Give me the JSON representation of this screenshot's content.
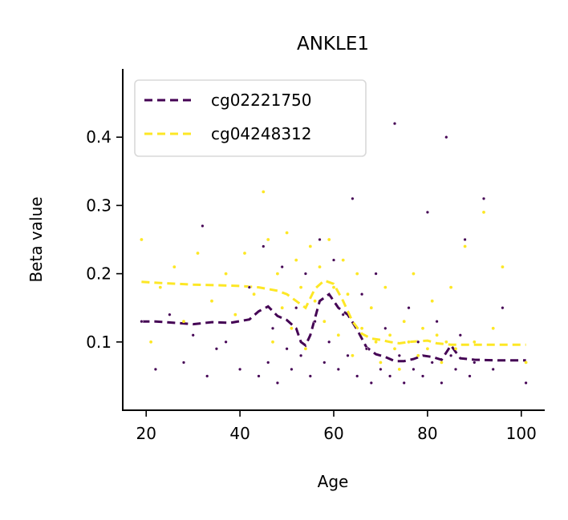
{
  "chart_data": {
    "type": "scatter",
    "title": "ANKLE1",
    "xlabel": "Age",
    "ylabel": "Beta value",
    "xlim": [
      15,
      105
    ],
    "ylim": [
      0.0,
      0.5
    ],
    "xticks": [
      20,
      40,
      60,
      80,
      100
    ],
    "yticks": [
      0.1,
      0.2,
      0.3,
      0.4
    ],
    "grid": false,
    "legend_position": "top-left",
    "series": [
      {
        "name": "cg02221750",
        "color": "#440154",
        "trend": [
          [
            19,
            0.13
          ],
          [
            22,
            0.13
          ],
          [
            26,
            0.128
          ],
          [
            30,
            0.126
          ],
          [
            34,
            0.129
          ],
          [
            38,
            0.128
          ],
          [
            42,
            0.133
          ],
          [
            44,
            0.145
          ],
          [
            46,
            0.152
          ],
          [
            48,
            0.138
          ],
          [
            50,
            0.132
          ],
          [
            52,
            0.12
          ],
          [
            53,
            0.1
          ],
          [
            54,
            0.095
          ],
          [
            55,
            0.11
          ],
          [
            57,
            0.16
          ],
          [
            59,
            0.17
          ],
          [
            61,
            0.15
          ],
          [
            63,
            0.14
          ],
          [
            65,
            0.118
          ],
          [
            67,
            0.092
          ],
          [
            69,
            0.082
          ],
          [
            71,
            0.078
          ],
          [
            73,
            0.072
          ],
          [
            75,
            0.072
          ],
          [
            77,
            0.075
          ],
          [
            79,
            0.08
          ],
          [
            81,
            0.078
          ],
          [
            83,
            0.074
          ],
          [
            85,
            0.095
          ],
          [
            87,
            0.076
          ],
          [
            90,
            0.074
          ],
          [
            95,
            0.073
          ],
          [
            101,
            0.073
          ]
        ],
        "points": [
          [
            19,
            0.13
          ],
          [
            22,
            0.06
          ],
          [
            25,
            0.14
          ],
          [
            28,
            0.07
          ],
          [
            30,
            0.11
          ],
          [
            32,
            0.27
          ],
          [
            33,
            0.05
          ],
          [
            35,
            0.09
          ],
          [
            37,
            0.1
          ],
          [
            40,
            0.06
          ],
          [
            42,
            0.18
          ],
          [
            44,
            0.05
          ],
          [
            45,
            0.24
          ],
          [
            46,
            0.07
          ],
          [
            47,
            0.12
          ],
          [
            48,
            0.04
          ],
          [
            49,
            0.21
          ],
          [
            50,
            0.09
          ],
          [
            51,
            0.06
          ],
          [
            52,
            0.15
          ],
          [
            53,
            0.08
          ],
          [
            54,
            0.2
          ],
          [
            55,
            0.05
          ],
          [
            56,
            0.13
          ],
          [
            57,
            0.25
          ],
          [
            58,
            0.07
          ],
          [
            59,
            0.1
          ],
          [
            60,
            0.22
          ],
          [
            61,
            0.06
          ],
          [
            62,
            0.14
          ],
          [
            63,
            0.08
          ],
          [
            64,
            0.31
          ],
          [
            65,
            0.05
          ],
          [
            66,
            0.17
          ],
          [
            67,
            0.09
          ],
          [
            68,
            0.04
          ],
          [
            69,
            0.2
          ],
          [
            70,
            0.06
          ],
          [
            71,
            0.12
          ],
          [
            72,
            0.05
          ],
          [
            73,
            0.42
          ],
          [
            74,
            0.08
          ],
          [
            75,
            0.04
          ],
          [
            76,
            0.15
          ],
          [
            77,
            0.06
          ],
          [
            78,
            0.1
          ],
          [
            79,
            0.05
          ],
          [
            80,
            0.29
          ],
          [
            81,
            0.07
          ],
          [
            82,
            0.13
          ],
          [
            83,
            0.04
          ],
          [
            84,
            0.4
          ],
          [
            85,
            0.08
          ],
          [
            86,
            0.06
          ],
          [
            87,
            0.11
          ],
          [
            88,
            0.25
          ],
          [
            89,
            0.05
          ],
          [
            90,
            0.07
          ],
          [
            92,
            0.31
          ],
          [
            94,
            0.06
          ],
          [
            96,
            0.15
          ],
          [
            101,
            0.04
          ]
        ]
      },
      {
        "name": "cg04248312",
        "color": "#fde725",
        "trend": [
          [
            19,
            0.188
          ],
          [
            24,
            0.186
          ],
          [
            30,
            0.184
          ],
          [
            36,
            0.183
          ],
          [
            40,
            0.182
          ],
          [
            44,
            0.18
          ],
          [
            48,
            0.175
          ],
          [
            50,
            0.17
          ],
          [
            52,
            0.16
          ],
          [
            54,
            0.15
          ],
          [
            56,
            0.178
          ],
          [
            58,
            0.19
          ],
          [
            60,
            0.185
          ],
          [
            62,
            0.16
          ],
          [
            64,
            0.13
          ],
          [
            66,
            0.112
          ],
          [
            68,
            0.105
          ],
          [
            70,
            0.103
          ],
          [
            72,
            0.1
          ],
          [
            74,
            0.098
          ],
          [
            76,
            0.1
          ],
          [
            78,
            0.101
          ],
          [
            80,
            0.102
          ],
          [
            82,
            0.098
          ],
          [
            85,
            0.096
          ],
          [
            90,
            0.096
          ],
          [
            95,
            0.096
          ],
          [
            101,
            0.096
          ]
        ],
        "points": [
          [
            19,
            0.25
          ],
          [
            21,
            0.1
          ],
          [
            23,
            0.18
          ],
          [
            26,
            0.21
          ],
          [
            28,
            0.13
          ],
          [
            31,
            0.23
          ],
          [
            34,
            0.16
          ],
          [
            37,
            0.2
          ],
          [
            39,
            0.14
          ],
          [
            41,
            0.23
          ],
          [
            43,
            0.17
          ],
          [
            45,
            0.32
          ],
          [
            46,
            0.25
          ],
          [
            47,
            0.1
          ],
          [
            48,
            0.2
          ],
          [
            49,
            0.15
          ],
          [
            50,
            0.26
          ],
          [
            51,
            0.12
          ],
          [
            52,
            0.22
          ],
          [
            53,
            0.18
          ],
          [
            54,
            0.09
          ],
          [
            55,
            0.24
          ],
          [
            56,
            0.16
          ],
          [
            57,
            0.21
          ],
          [
            58,
            0.13
          ],
          [
            59,
            0.25
          ],
          [
            60,
            0.18
          ],
          [
            61,
            0.11
          ],
          [
            62,
            0.22
          ],
          [
            63,
            0.17
          ],
          [
            64,
            0.08
          ],
          [
            65,
            0.2
          ],
          [
            66,
            0.12
          ],
          [
            67,
            0.09
          ],
          [
            68,
            0.15
          ],
          [
            69,
            0.1
          ],
          [
            70,
            0.07
          ],
          [
            71,
            0.18
          ],
          [
            72,
            0.11
          ],
          [
            73,
            0.09
          ],
          [
            74,
            0.06
          ],
          [
            75,
            0.13
          ],
          [
            76,
            0.1
          ],
          [
            77,
            0.2
          ],
          [
            78,
            0.08
          ],
          [
            79,
            0.12
          ],
          [
            80,
            0.09
          ],
          [
            81,
            0.16
          ],
          [
            82,
            0.11
          ],
          [
            83,
            0.07
          ],
          [
            84,
            0.1
          ],
          [
            85,
            0.18
          ],
          [
            86,
            0.09
          ],
          [
            88,
            0.24
          ],
          [
            90,
            0.1
          ],
          [
            92,
            0.29
          ],
          [
            94,
            0.12
          ],
          [
            96,
            0.21
          ],
          [
            101,
            0.07
          ]
        ]
      }
    ]
  }
}
